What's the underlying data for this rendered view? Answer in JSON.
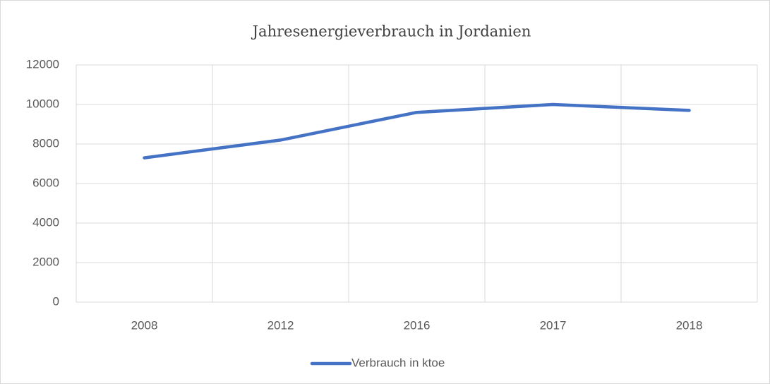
{
  "chart_data": {
    "type": "line",
    "title": "Jahresenergieverbrauch in Jordanien",
    "categories": [
      "2008",
      "2012",
      "2016",
      "2017",
      "2018"
    ],
    "series": [
      {
        "name": "Verbrauch in ktoe",
        "color": "#4472c4",
        "values": [
          7300,
          8200,
          9600,
          10000,
          9700
        ]
      }
    ],
    "ylim": [
      0,
      12000
    ],
    "yticks": [
      0,
      2000,
      4000,
      6000,
      8000,
      10000,
      12000
    ],
    "grid": true,
    "legend": "bottom"
  }
}
